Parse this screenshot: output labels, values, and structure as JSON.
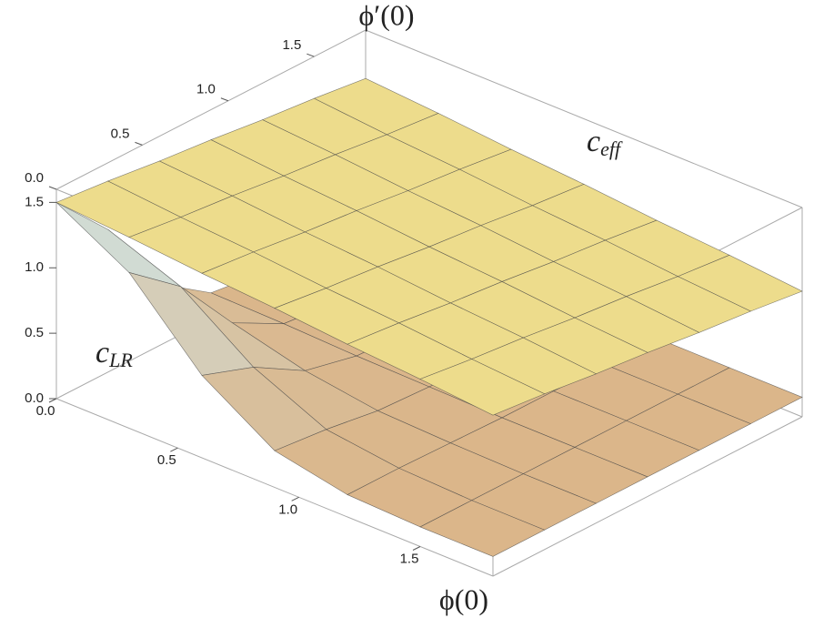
{
  "chart_data": {
    "type": "surface3d",
    "x_label": "ϕ(0)",
    "y_label": "ϕ′(0)",
    "x": [
      0,
      0.3,
      0.6,
      0.9,
      1.2,
      1.5,
      1.8
    ],
    "y": [
      0,
      0.3,
      0.6,
      0.9,
      1.2,
      1.5,
      1.8
    ],
    "xlim": [
      0,
      1.8
    ],
    "ylim": [
      0,
      1.8
    ],
    "zlim": [
      0,
      1.6
    ],
    "xticks": [
      {
        "value": 0,
        "label": "0.0"
      },
      {
        "value": 0.5,
        "label": "0.5"
      },
      {
        "value": 1,
        "label": "1.0"
      },
      {
        "value": 1.5,
        "label": "1.5"
      }
    ],
    "yticks": [
      {
        "value": 0,
        "label": "0.0"
      },
      {
        "value": 0.5,
        "label": "0.5"
      },
      {
        "value": 1,
        "label": "1.0"
      },
      {
        "value": 1.5,
        "label": "1.5"
      }
    ],
    "zticks": [
      {
        "value": 0,
        "label": "0.0"
      },
      {
        "value": 0.5,
        "label": "0.5"
      },
      {
        "value": 1,
        "label": "1.0"
      },
      {
        "value": 1.5,
        "label": "1.5"
      }
    ],
    "series": [
      {
        "label": "c",
        "subscript": "LR",
        "color": "#dcb07f",
        "color_top": "#cdebf2",
        "values": [
          [
            1.5,
            1.19,
            0.63,
            0.28,
            0.17,
            0.15,
            0.15
          ],
          [
            1.09,
            0.88,
            0.49,
            0.24,
            0.17,
            0.15,
            0.15
          ],
          [
            0.47,
            0.4,
            0.26,
            0.18,
            0.16,
            0.15,
            0.15
          ],
          [
            0.2,
            0.19,
            0.17,
            0.16,
            0.15,
            0.15,
            0.15
          ],
          [
            0.15,
            0.15,
            0.15,
            0.15,
            0.15,
            0.15,
            0.15
          ],
          [
            0.15,
            0.15,
            0.15,
            0.15,
            0.15,
            0.15,
            0.15
          ],
          [
            0.15,
            0.15,
            0.15,
            0.15,
            0.15,
            0.15,
            0.15
          ]
        ]
      },
      {
        "label": "c",
        "subscript": "eff",
        "color": "#eddc8c",
        "color_top": "#eddc8c",
        "values": [
          [
            1.5,
            1.46,
            1.41,
            1.37,
            1.32,
            1.28,
            1.23
          ],
          [
            1.46,
            1.41,
            1.37,
            1.32,
            1.28,
            1.23,
            1.19
          ],
          [
            1.41,
            1.37,
            1.32,
            1.28,
            1.23,
            1.19,
            1.14
          ],
          [
            1.37,
            1.32,
            1.28,
            1.23,
            1.19,
            1.14,
            1.1
          ],
          [
            1.32,
            1.28,
            1.23,
            1.19,
            1.14,
            1.1,
            1.05
          ],
          [
            1.28,
            1.23,
            1.19,
            1.14,
            1.1,
            1.05,
            1.01
          ],
          [
            1.23,
            1.19,
            1.14,
            1.1,
            1.05,
            1.01,
            0.96
          ]
        ]
      }
    ]
  }
}
